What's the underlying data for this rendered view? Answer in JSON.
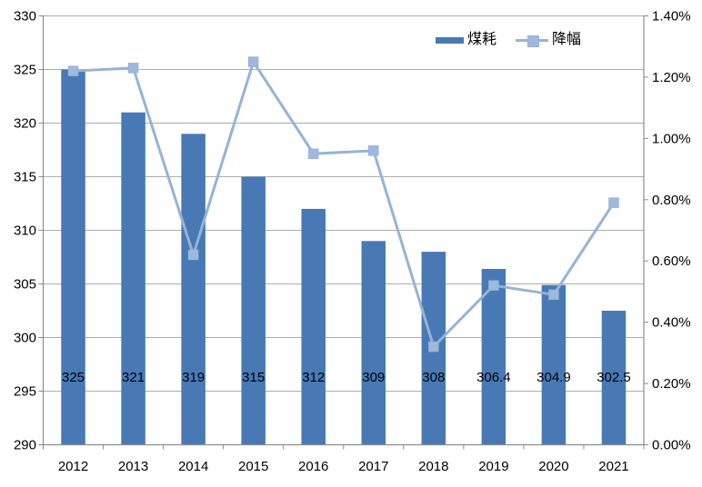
{
  "chart_data": {
    "type": "combo",
    "title": "",
    "xlabel": "",
    "ylabel": "",
    "categories": [
      "2012",
      "2013",
      "2014",
      "2015",
      "2016",
      "2017",
      "2018",
      "2019",
      "2020",
      "2021"
    ],
    "series": [
      {
        "name": "煤耗",
        "type": "bar",
        "axis": "left",
        "values": [
          325,
          321,
          319,
          315,
          312,
          309,
          308,
          306.4,
          304.9,
          302.5
        ],
        "data_labels": [
          "325",
          "321",
          "319",
          "315",
          "312",
          "309",
          "308",
          "306.4",
          "304.9",
          "302.5"
        ],
        "color": "#4879B5"
      },
      {
        "name": "降幅",
        "type": "line",
        "axis": "right",
        "values_percent": [
          1.22,
          1.23,
          0.62,
          1.25,
          0.95,
          0.96,
          0.32,
          0.52,
          0.49,
          0.79
        ],
        "color": "#95B3D7",
        "marker": "square",
        "marker_fill": "#9FB9DC"
      }
    ],
    "left_axis": {
      "min": 290,
      "max": 330,
      "step": 5,
      "ticks": [
        "290",
        "295",
        "300",
        "305",
        "310",
        "315",
        "320",
        "325",
        "330"
      ]
    },
    "right_axis": {
      "min": 0,
      "max": 1.4,
      "step": 0.2,
      "ticks": [
        "0.00%",
        "0.20%",
        "0.40%",
        "0.60%",
        "0.80%",
        "1.00%",
        "1.20%",
        "1.40%"
      ]
    },
    "grid": "horizontal",
    "legend": {
      "position": "top",
      "entries": [
        "煤耗",
        "降幅"
      ]
    }
  },
  "colors": {
    "background": "#FFFFFF",
    "bar": "#4879B5",
    "line": "#95B3D7",
    "marker_fill": "#9FB9DC",
    "gridline": "#ACACAC",
    "axis": "#8C8C8C",
    "text": "#000000"
  }
}
